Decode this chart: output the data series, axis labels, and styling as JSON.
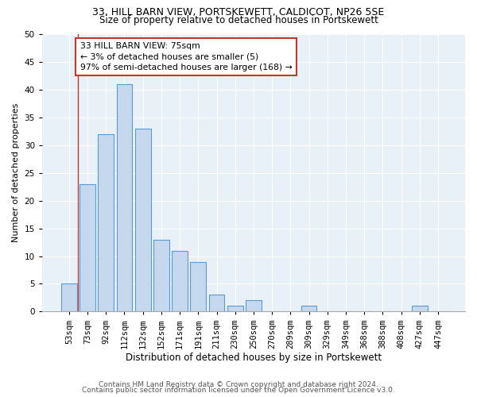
{
  "title1": "33, HILL BARN VIEW, PORTSKEWETT, CALDICOT, NP26 5SE",
  "title2": "Size of property relative to detached houses in Portskewett",
  "xlabel": "Distribution of detached houses by size in Portskewett",
  "ylabel": "Number of detached properties",
  "bar_labels": [
    "53sqm",
    "73sqm",
    "92sqm",
    "112sqm",
    "132sqm",
    "152sqm",
    "171sqm",
    "191sqm",
    "211sqm",
    "230sqm",
    "250sqm",
    "270sqm",
    "289sqm",
    "309sqm",
    "329sqm",
    "349sqm",
    "368sqm",
    "388sqm",
    "408sqm",
    "427sqm",
    "447sqm"
  ],
  "bar_values": [
    5,
    23,
    32,
    41,
    33,
    13,
    11,
    9,
    3,
    1,
    2,
    0,
    0,
    1,
    0,
    0,
    0,
    0,
    0,
    1,
    0
  ],
  "bar_color": "#c5d8ed",
  "bar_edge_color": "#5b9bd5",
  "background_color": "#e8f0f8",
  "annotation_line1": "33 HILL BARN VIEW: 75sqm",
  "annotation_line2": "← 3% of detached houses are smaller (5)",
  "annotation_line3": "97% of semi-detached houses are larger (168) →",
  "vline_color": "#c0392b",
  "footer1": "Contains HM Land Registry data © Crown copyright and database right 2024.",
  "footer2": "Contains public sector information licensed under the Open Government Licence v3.0.",
  "ylim": [
    0,
    50
  ],
  "yticks": [
    0,
    5,
    10,
    15,
    20,
    25,
    30,
    35,
    40,
    45,
    50
  ],
  "title1_fontsize": 9,
  "title2_fontsize": 8.5,
  "xlabel_fontsize": 8.5,
  "ylabel_fontsize": 8,
  "tick_fontsize": 7.5,
  "annotation_fontsize": 7.8,
  "footer_fontsize": 6.5
}
